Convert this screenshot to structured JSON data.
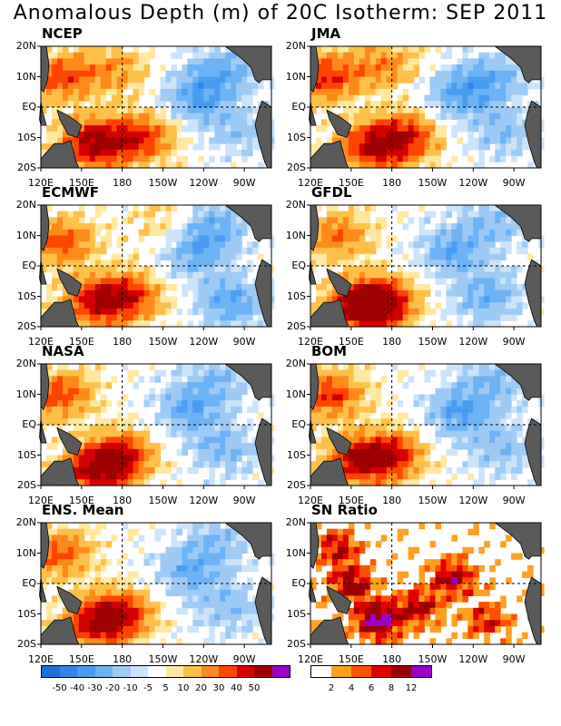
{
  "title": "Anomalous Depth (m) of 20C Isotherm: SEP 2011",
  "axes": {
    "lat_labels": [
      "20N",
      "10N",
      "EQ",
      "10S",
      "20S"
    ],
    "lon_labels": [
      "120E",
      "150E",
      "180",
      "150W",
      "120W",
      "90W"
    ]
  },
  "panels": [
    {
      "name": "NCEP",
      "scale": "anomaly",
      "peaks": [
        {
          "lon": 195,
          "lat": -10,
          "v": 38
        },
        {
          "lon": 160,
          "lat": -12,
          "v": 55
        },
        {
          "lon": 135,
          "lat": 10,
          "v": 35
        },
        {
          "lon": 175,
          "lat": 12,
          "v": 22
        },
        {
          "lon": 235,
          "lat": 3,
          "v": -30
        },
        {
          "lon": 255,
          "lat": 12,
          "v": -25
        },
        {
          "lon": 265,
          "lat": -8,
          "v": -15
        }
      ]
    },
    {
      "name": "JMA",
      "scale": "anomaly",
      "peaks": [
        {
          "lon": 190,
          "lat": -10,
          "v": 40
        },
        {
          "lon": 165,
          "lat": -13,
          "v": 45
        },
        {
          "lon": 132,
          "lat": 10,
          "v": 40
        },
        {
          "lon": 175,
          "lat": 14,
          "v": 25
        },
        {
          "lon": 230,
          "lat": 4,
          "v": -28
        },
        {
          "lon": 255,
          "lat": 10,
          "v": -22
        },
        {
          "lon": 262,
          "lat": -8,
          "v": -18
        }
      ]
    },
    {
      "name": "ECMWF",
      "scale": "anomaly",
      "peaks": [
        {
          "lon": 185,
          "lat": -10,
          "v": 38
        },
        {
          "lon": 160,
          "lat": -12,
          "v": 42
        },
        {
          "lon": 135,
          "lat": 8,
          "v": 35
        },
        {
          "lon": 210,
          "lat": 14,
          "v": 12
        },
        {
          "lon": 235,
          "lat": 5,
          "v": -28
        },
        {
          "lon": 260,
          "lat": -12,
          "v": -30
        },
        {
          "lon": 250,
          "lat": 14,
          "v": -20
        }
      ]
    },
    {
      "name": "GFDL",
      "scale": "anomaly",
      "peaks": [
        {
          "lon": 175,
          "lat": -12,
          "v": 38
        },
        {
          "lon": 158,
          "lat": -13,
          "v": 58
        },
        {
          "lon": 140,
          "lat": 10,
          "v": 28
        },
        {
          "lon": 225,
          "lat": 5,
          "v": -28
        },
        {
          "lon": 250,
          "lat": -10,
          "v": -25
        },
        {
          "lon": 255,
          "lat": 14,
          "v": -18
        }
      ]
    },
    {
      "name": "NASA",
      "scale": "anomaly",
      "peaks": [
        {
          "lon": 180,
          "lat": -10,
          "v": 40
        },
        {
          "lon": 160,
          "lat": -15,
          "v": 50
        },
        {
          "lon": 135,
          "lat": 10,
          "v": 35
        },
        {
          "lon": 230,
          "lat": 5,
          "v": -28
        },
        {
          "lon": 255,
          "lat": -8,
          "v": -20
        },
        {
          "lon": 250,
          "lat": 15,
          "v": -18
        }
      ]
    },
    {
      "name": "BOM",
      "scale": "anomaly",
      "peaks": [
        {
          "lon": 180,
          "lat": -10,
          "v": 40
        },
        {
          "lon": 155,
          "lat": -12,
          "v": 45
        },
        {
          "lon": 135,
          "lat": 10,
          "v": 38
        },
        {
          "lon": 230,
          "lat": 4,
          "v": -30
        },
        {
          "lon": 260,
          "lat": -8,
          "v": -18
        },
        {
          "lon": 255,
          "lat": 14,
          "v": -20
        }
      ]
    },
    {
      "name": "ENS. Mean",
      "scale": "anomaly",
      "peaks": [
        {
          "lon": 180,
          "lat": -10,
          "v": 38
        },
        {
          "lon": 160,
          "lat": -13,
          "v": 42
        },
        {
          "lon": 135,
          "lat": 10,
          "v": 32
        },
        {
          "lon": 230,
          "lat": 4,
          "v": -26
        },
        {
          "lon": 258,
          "lat": -8,
          "v": -18
        },
        {
          "lon": 252,
          "lat": 14,
          "v": -18
        }
      ]
    },
    {
      "name": "SN Ratio",
      "scale": "snr",
      "peaks": [
        {
          "lon": 150,
          "lat": 0,
          "v": 10
        },
        {
          "lon": 170,
          "lat": -12,
          "v": 14
        },
        {
          "lon": 200,
          "lat": -8,
          "v": 9
        },
        {
          "lon": 225,
          "lat": 2,
          "v": 10
        },
        {
          "lon": 250,
          "lat": -12,
          "v": 7
        },
        {
          "lon": 140,
          "lat": 12,
          "v": 8
        }
      ]
    }
  ],
  "anomaly_colorbar": {
    "labels": [
      "-50",
      "-40",
      "-30",
      "-20",
      "-10",
      "-5",
      "5",
      "10",
      "20",
      "30",
      "40",
      "50"
    ],
    "colors": [
      "#1e6fd8",
      "#2f86e8",
      "#4a9cf0",
      "#6cb2f5",
      "#9ecbf6",
      "#cce4fa",
      "#ffffff",
      "#ffe9a0",
      "#ffc04a",
      "#ff8a1a",
      "#ff4400",
      "#d40000",
      "#9e0000",
      "#9a00cc"
    ]
  },
  "snr_colorbar": {
    "labels": [
      "2",
      "4",
      "6",
      "8",
      "12"
    ],
    "colors": [
      "#ffffff",
      "#ffa020",
      "#ff5000",
      "#e00000",
      "#9e0000",
      "#9a00cc"
    ]
  }
}
